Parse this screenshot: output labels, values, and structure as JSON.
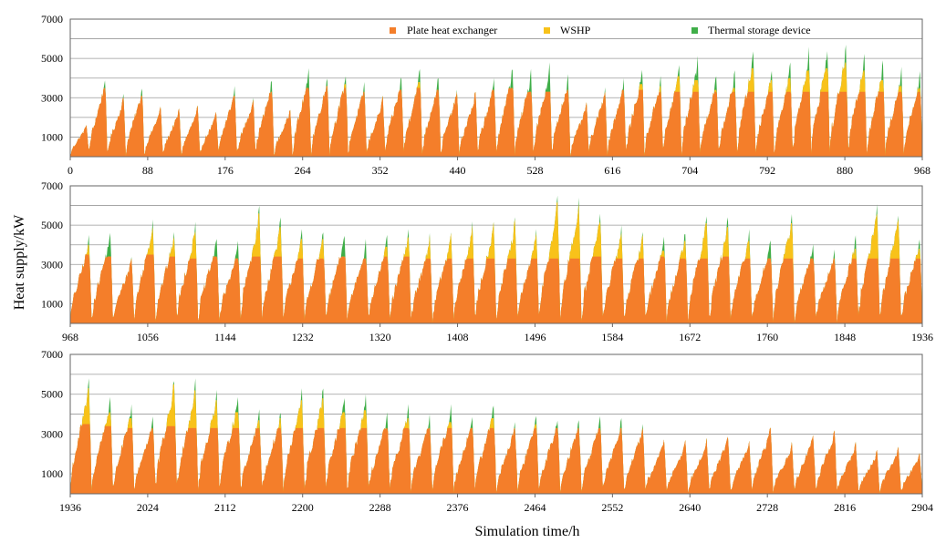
{
  "chart_data": {
    "type": "area",
    "stacked": true,
    "xlabel": "Simulation time/h",
    "ylabel": "Heat supply/kW",
    "legend": [
      "Plate heat exchanger",
      "WSHP",
      "Thermal storage device"
    ],
    "colors": {
      "Plate heat exchanger": "#f47e2a",
      "WSHP": "#f8c21a",
      "Thermal storage device": "#3fae48"
    },
    "grid": true,
    "legend_position": "top",
    "ylim": [
      0,
      7000
    ],
    "yticks": [
      "1000",
      "3000",
      "5000",
      "7000"
    ],
    "panels": [
      {
        "xlim": [
          0,
          968
        ],
        "xticks": [
          "0",
          "88",
          "176",
          "264",
          "352",
          "440",
          "528",
          "616",
          "704",
          "792",
          "880",
          "968"
        ],
        "daily_series": {
          "peak_total": [
            1700,
            4100,
            3200,
            3600,
            2600,
            2500,
            2600,
            2300,
            3600,
            3100,
            4000,
            2500,
            4500,
            4200,
            4300,
            3800,
            3100,
            4200,
            4600,
            4200,
            3500,
            3400,
            4000,
            4700,
            4500,
            4800,
            4200,
            2800,
            3600,
            4000,
            4600,
            4200,
            4800,
            5200,
            4200,
            4400,
            5500,
            4600,
            4800,
            5600,
            5700,
            5800,
            5400,
            4900,
            4600,
            4400
          ],
          "plate_heat_exchanger": [
            1700,
            3500,
            3000,
            3100,
            2600,
            2500,
            2600,
            2300,
            3100,
            2900,
            3300,
            2500,
            3500,
            3600,
            3500,
            3300,
            3100,
            3400,
            3500,
            3400,
            3300,
            3300,
            3400,
            3500,
            3300,
            3300,
            3400,
            2800,
            3300,
            3400,
            3400,
            3300,
            3300,
            3300,
            3300,
            3300,
            3300,
            3300,
            3300,
            3300,
            3300,
            3300,
            3300,
            3300,
            3300,
            3300
          ],
          "wshp": [
            0,
            0,
            0,
            0,
            0,
            0,
            0,
            0,
            0,
            0,
            0,
            0,
            0,
            0,
            200,
            0,
            0,
            0,
            300,
            0,
            0,
            0,
            0,
            0,
            0,
            0,
            0,
            0,
            0,
            0,
            300,
            300,
            800,
            600,
            100,
            200,
            1200,
            600,
            700,
            1100,
            1200,
            1500,
            1100,
            600,
            300,
            200
          ]
        }
      },
      {
        "xlim": [
          968,
          1936
        ],
        "xticks": [
          "968",
          "1056",
          "1144",
          "1232",
          "1320",
          "1408",
          "1496",
          "1584",
          "1672",
          "1760",
          "1848",
          "1936"
        ],
        "daily_series": {
          "peak_total": [
            4500,
            4800,
            3500,
            5400,
            4800,
            5200,
            4500,
            4200,
            6000,
            5400,
            4800,
            4800,
            4700,
            4300,
            4500,
            4800,
            4600,
            4700,
            5200,
            5400,
            5400,
            4800,
            6500,
            6400,
            5800,
            5000,
            4800,
            4500,
            4800,
            5600,
            5400,
            4800,
            4400,
            5800,
            4200,
            3800,
            4500,
            6200,
            5800,
            4500
          ],
          "plate_heat_exchanger": [
            3500,
            3400,
            3300,
            3500,
            3400,
            3300,
            3400,
            3300,
            3400,
            3400,
            3300,
            3300,
            3400,
            3300,
            3400,
            3400,
            3300,
            3300,
            3300,
            3300,
            3300,
            3300,
            3300,
            3300,
            3400,
            3300,
            3300,
            3400,
            3300,
            3300,
            3400,
            3300,
            3300,
            3300,
            3300,
            3300,
            3300,
            3300,
            3300,
            3300
          ],
          "wshp": [
            500,
            0,
            0,
            1400,
            1000,
            1400,
            0,
            0,
            2200,
            1500,
            1000,
            1000,
            0,
            0,
            500,
            1000,
            1200,
            1300,
            1700,
            2000,
            2000,
            1300,
            2900,
            2800,
            1800,
            1300,
            1200,
            300,
            900,
            1800,
            1500,
            900,
            0,
            1800,
            0,
            0,
            500,
            2300,
            2000,
            500
          ]
        }
      },
      {
        "xlim": [
          1936,
          2904
        ],
        "xticks": [
          "1936",
          "2024",
          "2112",
          "2200",
          "2288",
          "2376",
          "2464",
          "2552",
          "2640",
          "2728",
          "2816",
          "2904"
        ],
        "daily_series": {
          "peak_total": [
            5800,
            5000,
            4500,
            3900,
            5900,
            5800,
            5300,
            5100,
            4300,
            4200,
            5300,
            5400,
            5000,
            5000,
            4100,
            4500,
            4000,
            4500,
            4000,
            4600,
            3600,
            4000,
            3900,
            3800,
            3900,
            3800,
            3500,
            2800,
            2700,
            2800,
            3000,
            2700,
            3500,
            2600,
            3100,
            3300,
            2600,
            2200,
            2400,
            2100
          ],
          "plate_heat_exchanger": [
            3500,
            3400,
            3300,
            3300,
            3400,
            3300,
            3300,
            3300,
            3300,
            3300,
            3300,
            3300,
            3300,
            3300,
            3300,
            3300,
            3300,
            3300,
            3300,
            3300,
            3300,
            3300,
            3300,
            3300,
            3300,
            3300,
            3300,
            2800,
            2700,
            2800,
            3000,
            2700,
            3500,
            2600,
            3100,
            3300,
            2600,
            2200,
            2400,
            2100
          ],
          "wshp": [
            1800,
            700,
            500,
            0,
            2100,
            1900,
            1400,
            800,
            400,
            500,
            1400,
            1500,
            800,
            900,
            0,
            500,
            0,
            300,
            0,
            500,
            0,
            200,
            0,
            0,
            0,
            0,
            0,
            0,
            0,
            0,
            0,
            0,
            0,
            0,
            0,
            0,
            0,
            0,
            0,
            0
          ]
        }
      }
    ]
  }
}
